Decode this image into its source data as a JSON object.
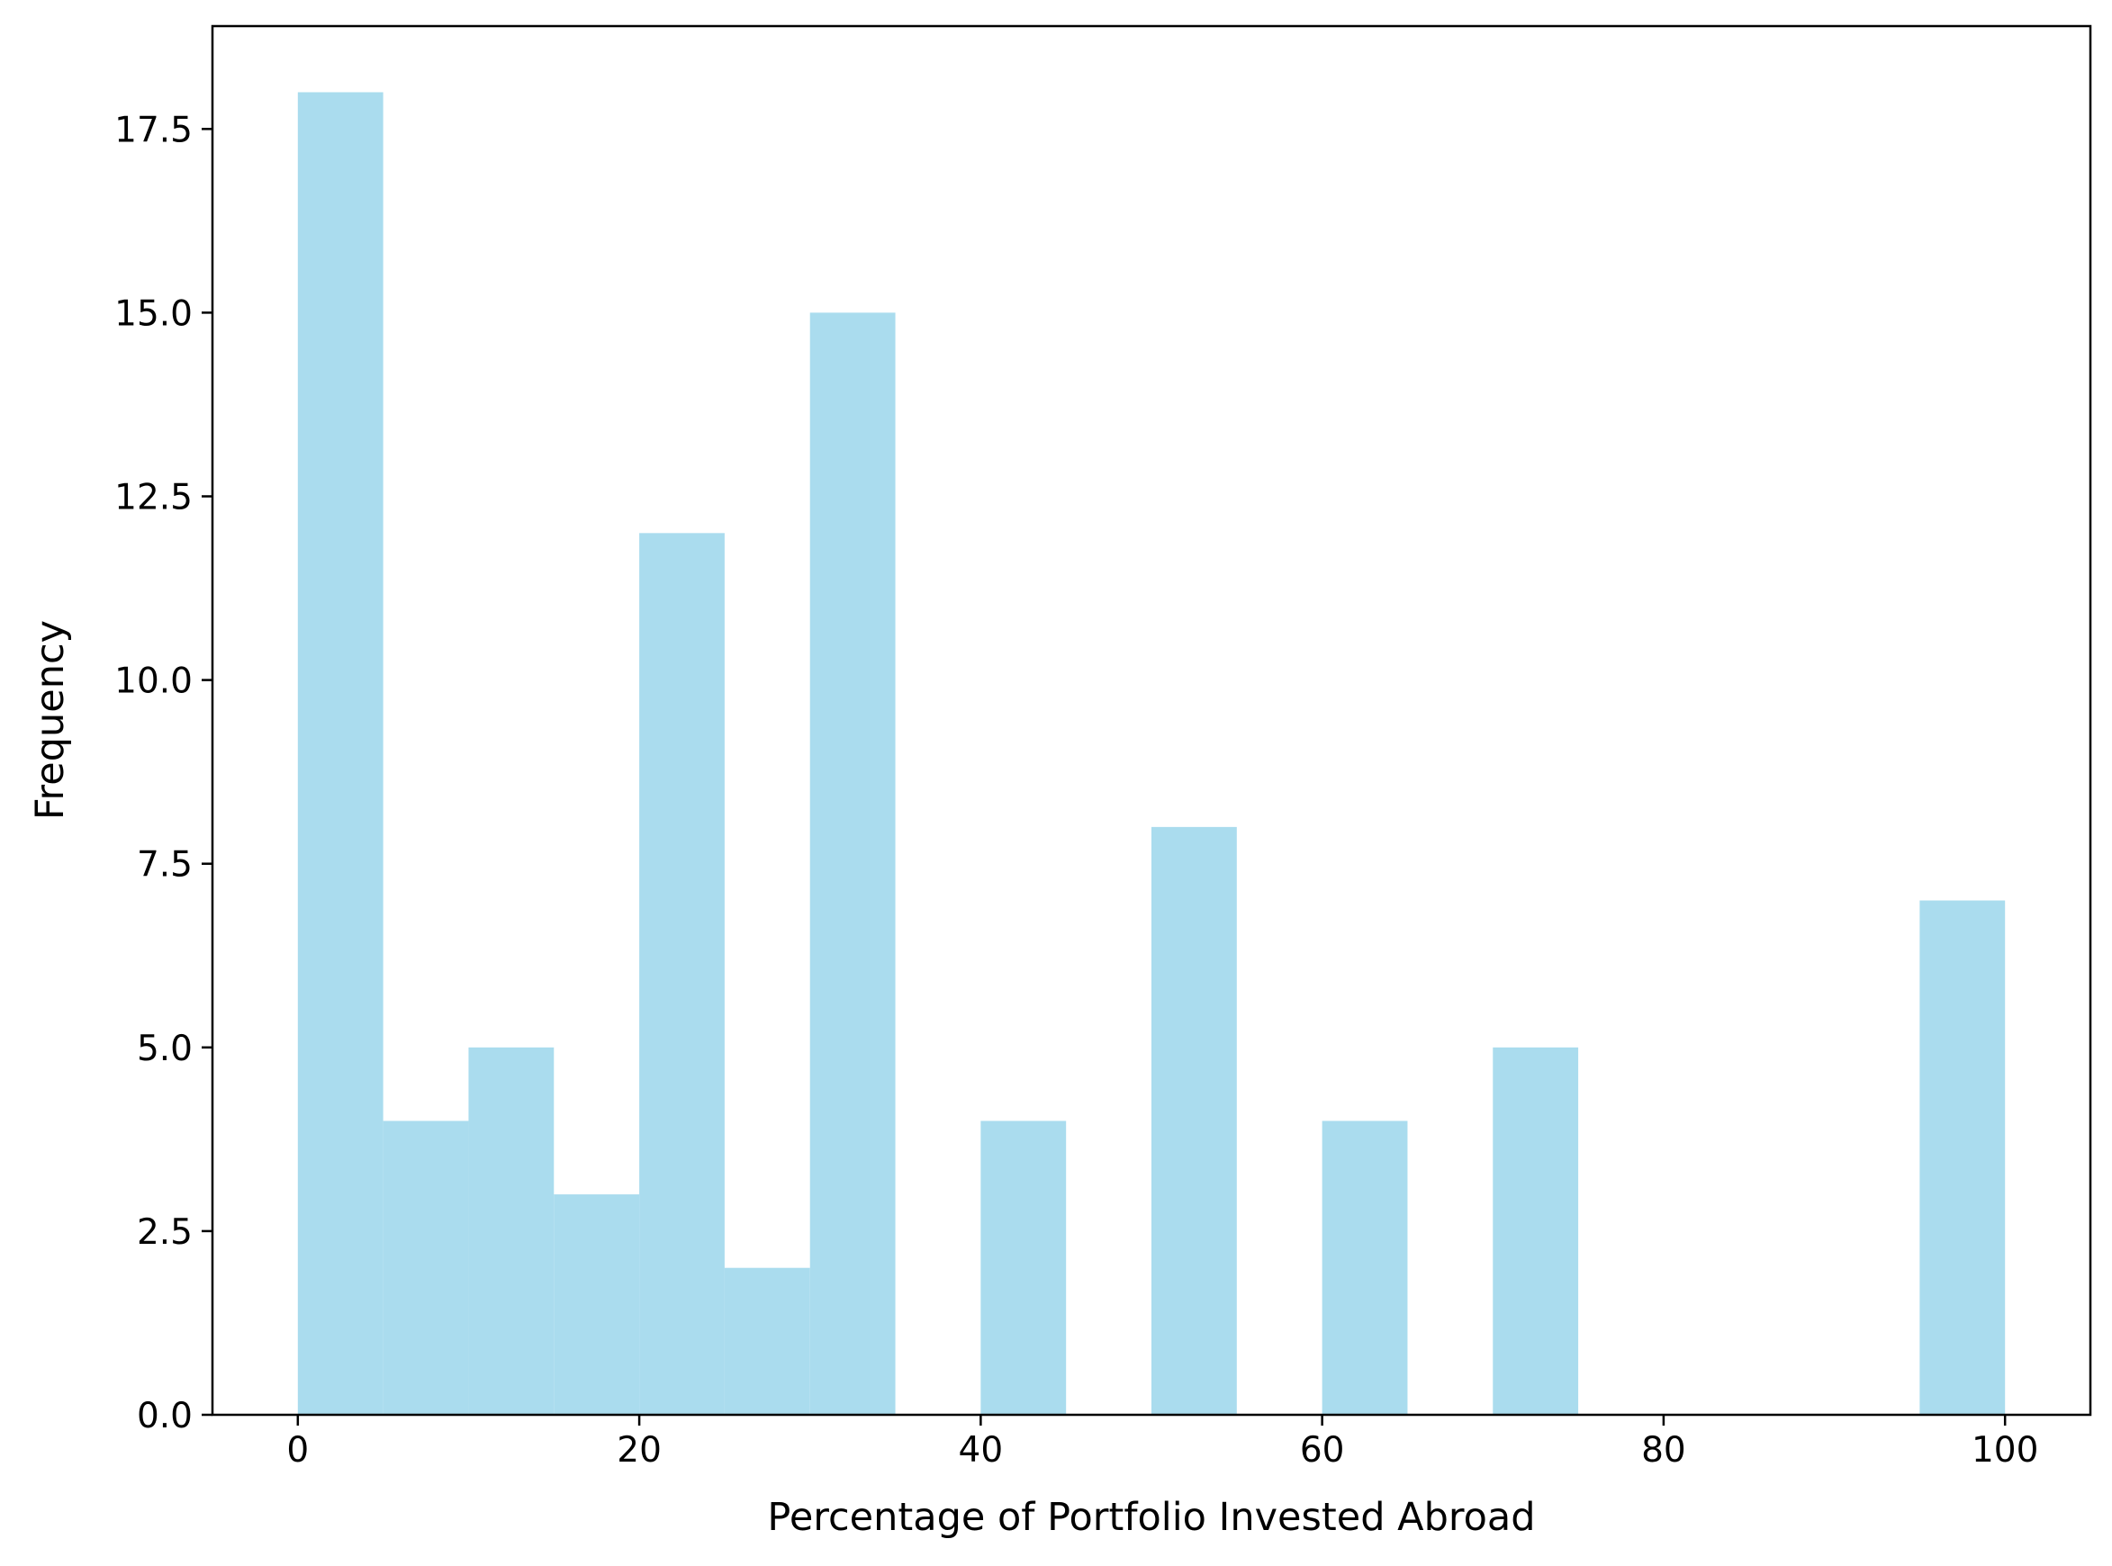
{
  "chart_data": {
    "type": "bar",
    "subtype": "histogram",
    "title": "",
    "xlabel": "Percentage of Portfolio Invested Abroad",
    "ylabel": "Frequency",
    "bin_edges": [
      0,
      5,
      10,
      15,
      20,
      25,
      30,
      35,
      40,
      45,
      50,
      55,
      60,
      65,
      70,
      75,
      80,
      85,
      90,
      95,
      100
    ],
    "values": [
      18,
      4,
      5,
      3,
      12,
      2,
      15,
      0,
      4,
      0,
      8,
      0,
      4,
      0,
      5,
      0,
      0,
      0,
      0,
      7
    ],
    "xlim": [
      -5,
      105
    ],
    "ylim": [
      0,
      18.9
    ],
    "x_ticks": [
      0,
      20,
      40,
      60,
      80,
      100
    ],
    "x_tick_labels": [
      "0",
      "20",
      "40",
      "60",
      "80",
      "100"
    ],
    "y_ticks": [
      0,
      2.5,
      5,
      7.5,
      10,
      12.5,
      15,
      17.5
    ],
    "y_tick_labels": [
      "0.0",
      "2.5",
      "5.0",
      "7.5",
      "10.0",
      "12.5",
      "15.0",
      "17.5"
    ],
    "bar_color": "#aadcee",
    "grid": false,
    "legend": "none"
  }
}
